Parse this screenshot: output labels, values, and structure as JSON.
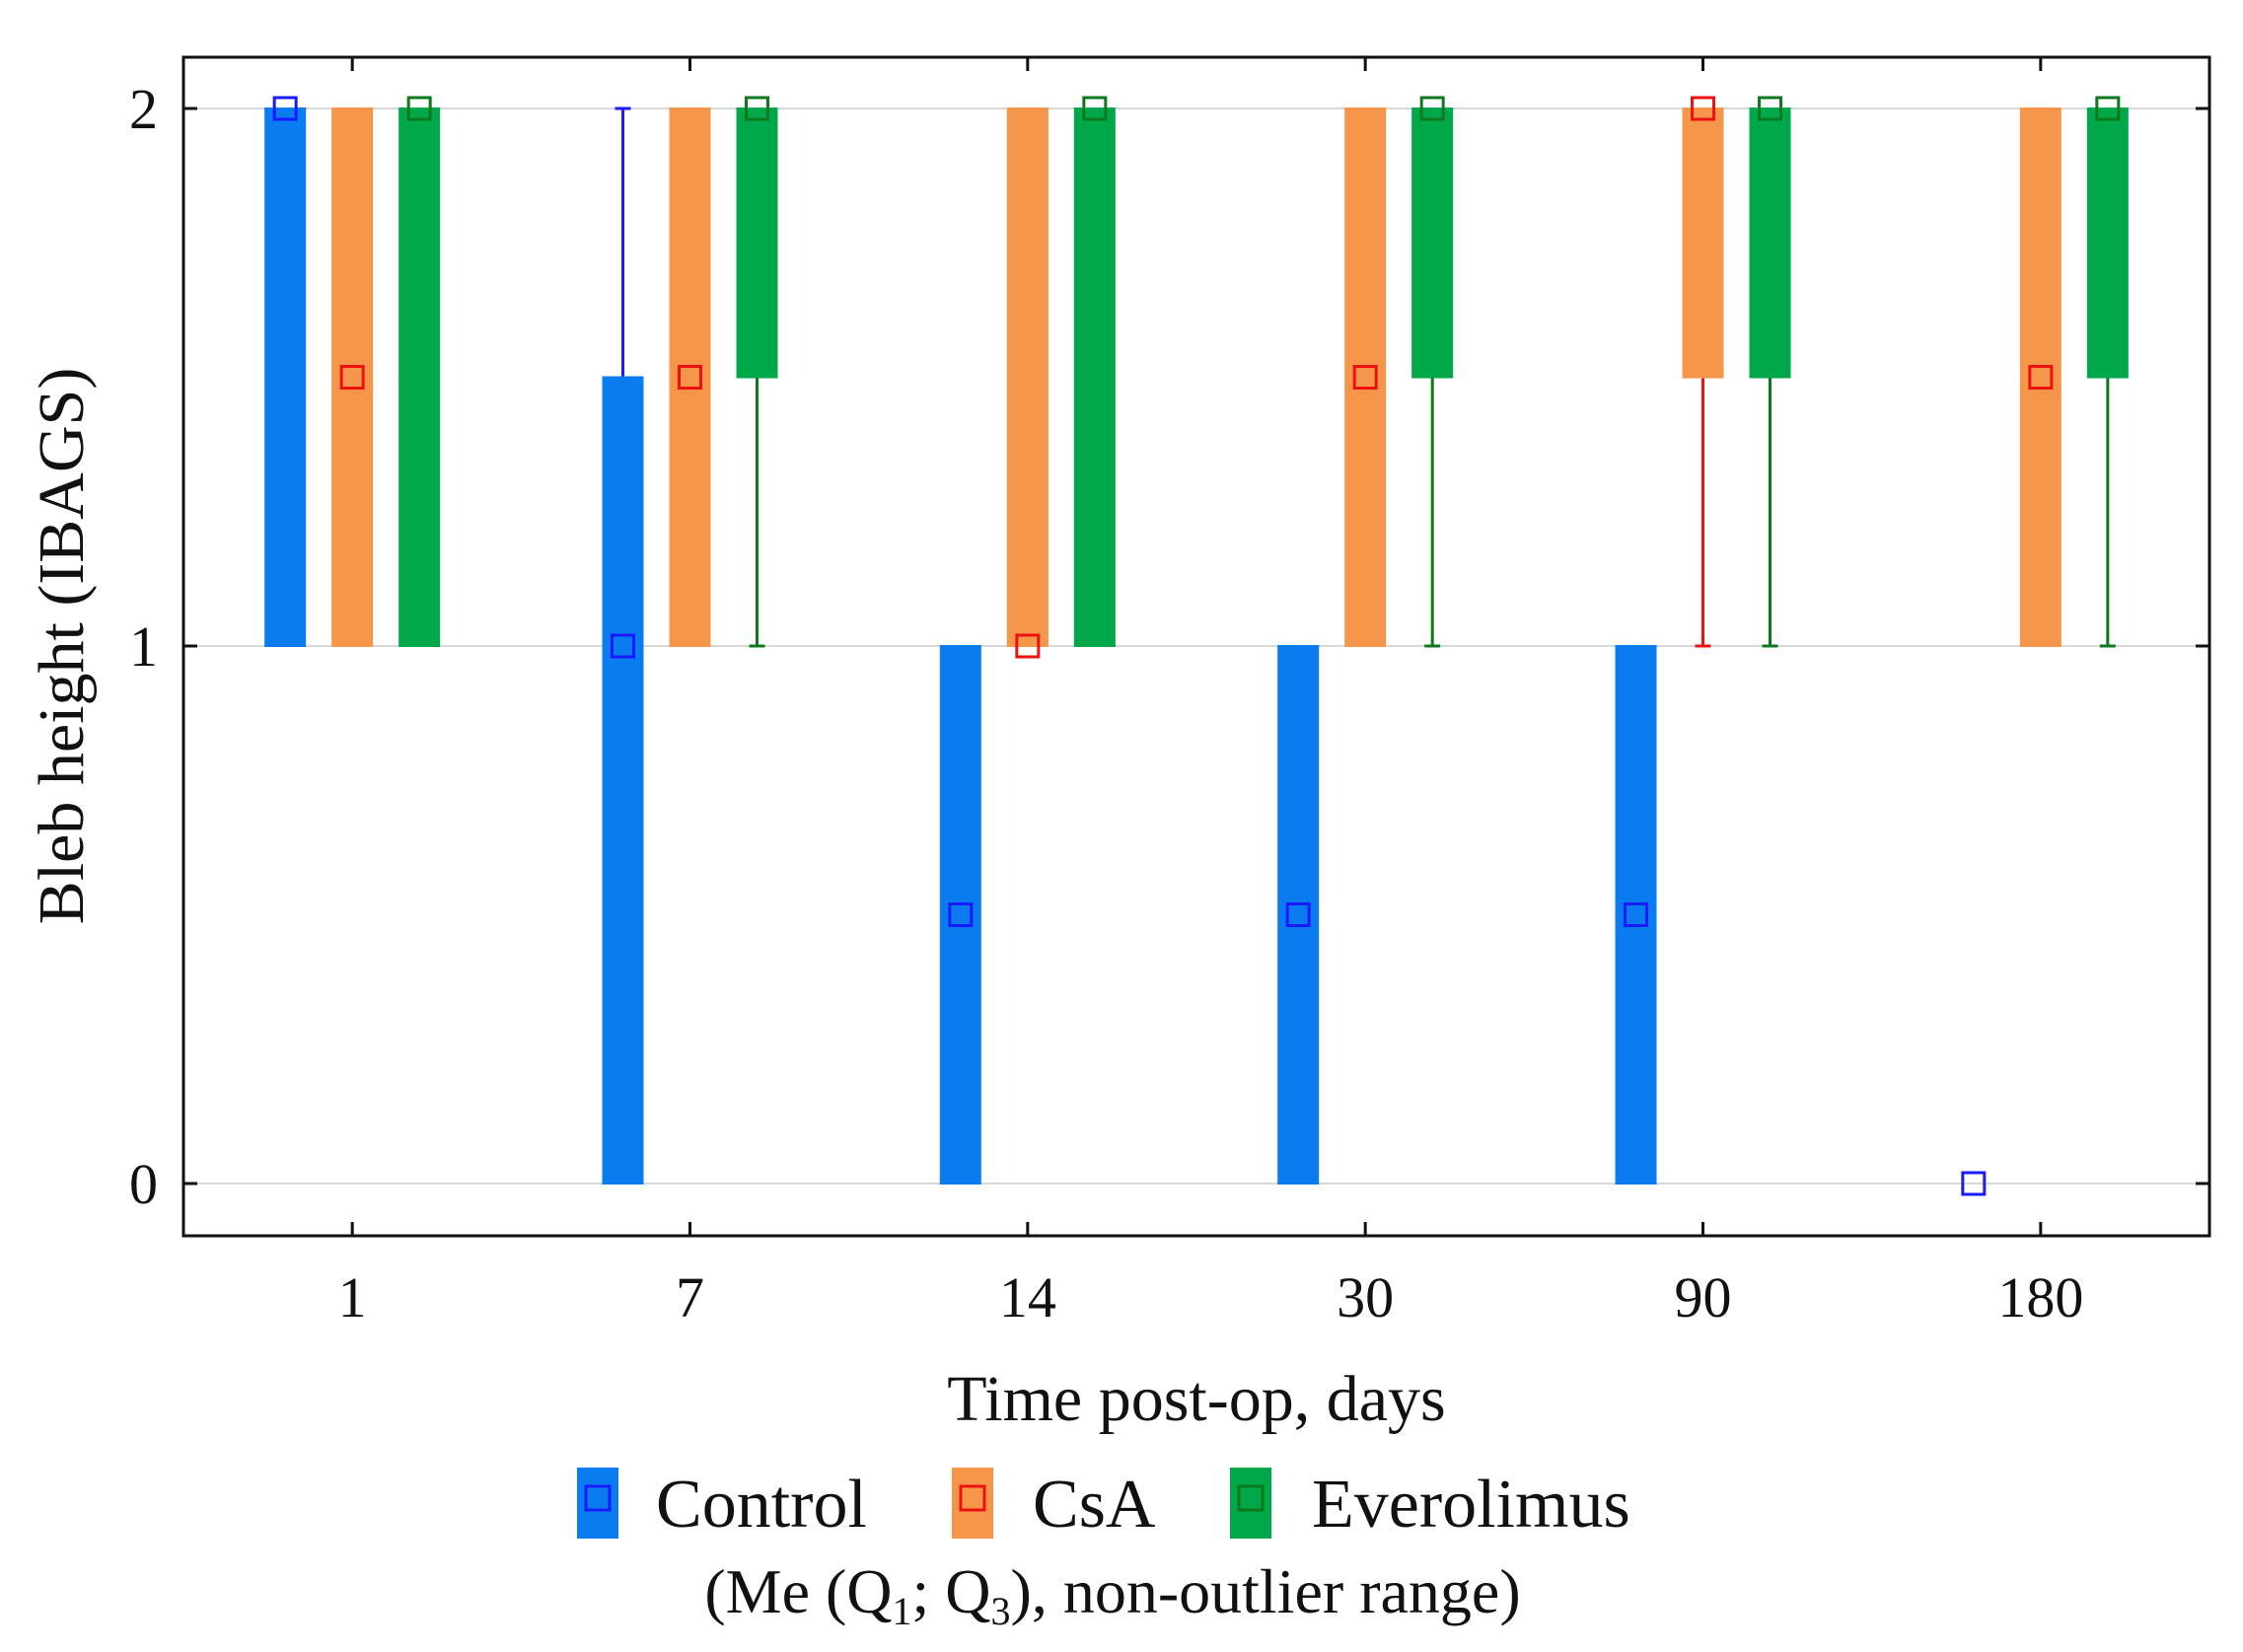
{
  "chart_data": {
    "type": "box",
    "xlabel": "Time post-op, days",
    "ylabel": "Bleb height (IBAGS)",
    "ylim": [
      -0.1,
      2.1
    ],
    "yticks": [
      0,
      1,
      2
    ],
    "grid": "horizontal",
    "categories": [
      "1",
      "7",
      "14",
      "30",
      "90",
      "180"
    ],
    "legend": {
      "placement": "bottom",
      "entries": [
        "Control",
        "CsA",
        "Everolimus"
      ],
      "note_prefix": "(Me (Q",
      "note_sub1": "1",
      "note_mid": "; Q",
      "note_sub3": "3",
      "note_suffix": "), non-outlier range)"
    },
    "series": [
      {
        "name": "Control",
        "fill": "#0a7cf0",
        "marker": "#1a1aff",
        "boxes": [
          {
            "median": 2,
            "q1": 1,
            "q3": 2,
            "min": 1,
            "max": 2
          },
          {
            "median": 1,
            "q1": 0,
            "q3": 1.5,
            "min": 0,
            "max": 2
          },
          {
            "median": 0.5,
            "q1": 0,
            "q3": 1,
            "min": 0,
            "max": 1
          },
          {
            "median": 0.5,
            "q1": 0,
            "q3": 1,
            "min": 0,
            "max": 1
          },
          {
            "median": 0.5,
            "q1": 0,
            "q3": 1,
            "min": 0,
            "max": 1
          },
          {
            "median": 0,
            "q1": 0,
            "q3": 0,
            "min": 0,
            "max": 0
          }
        ]
      },
      {
        "name": "CsA",
        "fill": "#f5964a",
        "marker": "#ee1111",
        "boxes": [
          {
            "median": 1.5,
            "q1": 1,
            "q3": 2,
            "min": 1,
            "max": 2
          },
          {
            "median": 1.5,
            "q1": 1,
            "q3": 2,
            "min": 1,
            "max": 2
          },
          {
            "median": 1,
            "q1": 1,
            "q3": 2,
            "min": 1,
            "max": 2
          },
          {
            "median": 1.5,
            "q1": 1,
            "q3": 2,
            "min": 1,
            "max": 2
          },
          {
            "median": 2,
            "q1": 1.5,
            "q3": 2,
            "min": 1,
            "max": 2
          },
          {
            "median": 1.5,
            "q1": 1,
            "q3": 2,
            "min": 1,
            "max": 2
          }
        ]
      },
      {
        "name": "Everolimus",
        "fill": "#00a84a",
        "marker": "#0c7a1c",
        "boxes": [
          {
            "median": 2,
            "q1": 1,
            "q3": 2,
            "min": 1,
            "max": 2
          },
          {
            "median": 2,
            "q1": 1.5,
            "q3": 2,
            "min": 1,
            "max": 2
          },
          {
            "median": 2,
            "q1": 1,
            "q3": 2,
            "min": 1,
            "max": 2
          },
          {
            "median": 2,
            "q1": 1.5,
            "q3": 2,
            "min": 1,
            "max": 2
          },
          {
            "median": 2,
            "q1": 1.5,
            "q3": 2,
            "min": 1,
            "max": 2
          },
          {
            "median": 2,
            "q1": 1.5,
            "q3": 2,
            "min": 1,
            "max": 2
          }
        ]
      }
    ]
  }
}
